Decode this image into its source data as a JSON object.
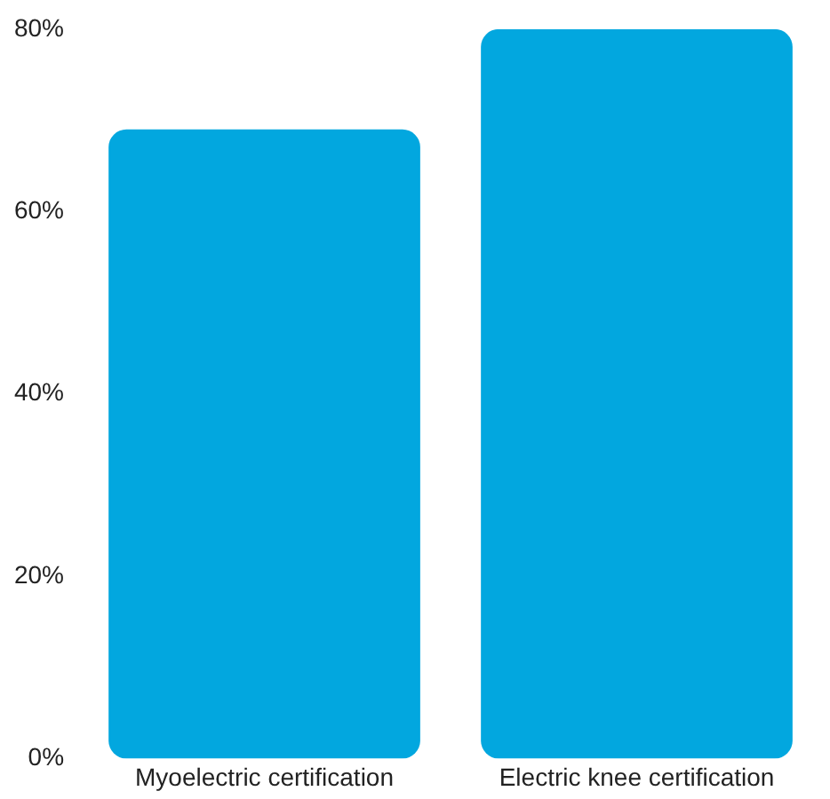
{
  "chart_data": {
    "type": "bar",
    "categories": [
      "Myoelectric certification",
      "Electric knee certification"
    ],
    "values": [
      69,
      80
    ],
    "color": "#02a7df",
    "ylim": [
      0,
      80
    ],
    "yticks": [
      {
        "value": 0,
        "label": "0%"
      },
      {
        "value": 20,
        "label": "20%"
      },
      {
        "value": 40,
        "label": "40%"
      },
      {
        "value": 60,
        "label": "60%"
      },
      {
        "value": 80,
        "label": "80%"
      }
    ],
    "grid": false,
    "legend": false
  }
}
